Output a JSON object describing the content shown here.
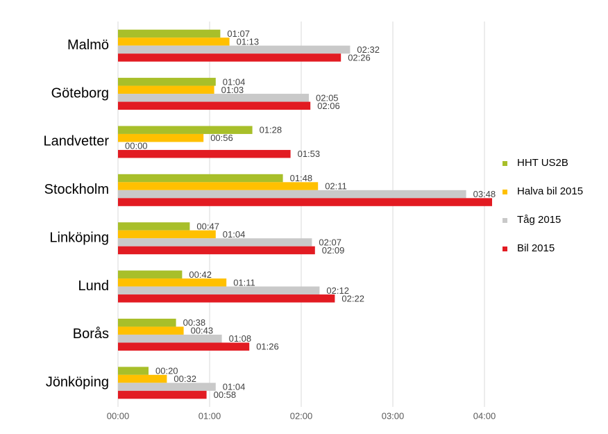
{
  "chart_data": {
    "type": "hbar",
    "categories": [
      "Malmö",
      "Göteborg",
      "Landvetter",
      "Stockholm",
      "Linköping",
      "Lund",
      "Borås",
      "Jönköping"
    ],
    "series": [
      {
        "name": "HHT US2B",
        "color": "#a8bf2a",
        "values": [
          67,
          64,
          88,
          108,
          47,
          42,
          38,
          20
        ],
        "value_labels": [
          "01:07",
          "01:04",
          "01:28",
          "01:48",
          "00:47",
          "00:42",
          "00:38",
          "00:20"
        ]
      },
      {
        "name": "Halva bil 2015",
        "color": "#ffc000",
        "values": [
          73,
          63,
          56,
          131,
          64,
          71,
          43,
          32
        ],
        "value_labels": [
          "01:13",
          "01:03",
          "00:56",
          "02:11",
          "01:04",
          "01:11",
          "00:43",
          "00:32"
        ]
      },
      {
        "name": "Tåg 2015",
        "color": "#c9c9c9",
        "values": [
          152,
          125,
          0,
          228,
          127,
          132,
          68,
          64
        ],
        "value_labels": [
          "02:32",
          "02:05",
          "00:00",
          "03:48",
          "02:07",
          "02:12",
          "01:08",
          "01:04"
        ]
      },
      {
        "name": "Bil 2015",
        "color": "#e21b22",
        "values": [
          146,
          126,
          113,
          245,
          129,
          142,
          86,
          58
        ],
        "value_labels": [
          "02:26",
          "02:06",
          "01:53",
          null,
          "02:09",
          "02:22",
          "01:26",
          "00:58"
        ]
      }
    ],
    "xlim": [
      0,
      250
    ],
    "xticks": [
      {
        "value": 0,
        "label": "00:00"
      },
      {
        "value": 60,
        "label": "01:00"
      },
      {
        "value": 120,
        "label": "02:00"
      },
      {
        "value": 180,
        "label": "03:00"
      },
      {
        "value": 240,
        "label": "04:00"
      }
    ],
    "grid": true,
    "legend": "right"
  }
}
